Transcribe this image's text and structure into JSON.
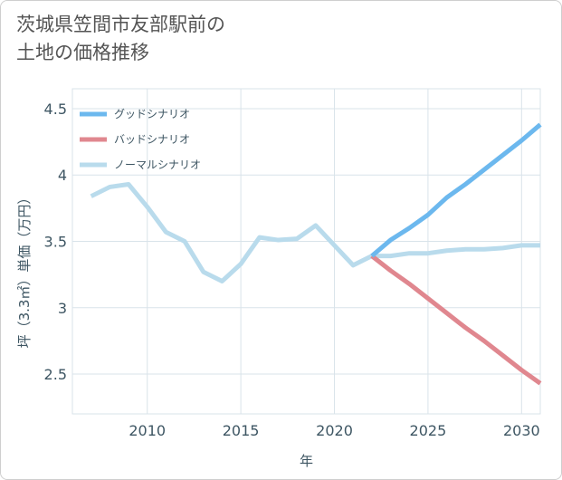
{
  "title": {
    "line1": "茨城県笠間市友部駅前の",
    "line2": "土地の価格推移"
  },
  "chart_data": {
    "type": "line",
    "xlabel": "年",
    "ylabel": "坪（3.3㎡）単価（万円）",
    "xlim": [
      2006,
      2031
    ],
    "ylim": [
      2.2,
      4.65
    ],
    "x_ticks": [
      2010,
      2015,
      2020,
      2025,
      2030
    ],
    "y_ticks": [
      2.5,
      3,
      3.5,
      4,
      4.5
    ],
    "x_tick_labels": [
      "2010",
      "2015",
      "2020",
      "2025",
      "2030"
    ],
    "y_tick_labels": [
      "2.5",
      "3",
      "3.5",
      "4",
      "4.5"
    ],
    "grid": true,
    "legend_position": "top-left",
    "series": [
      {
        "name": "グッドシナリオ",
        "color": "#6cb8ee",
        "x": [
          2022,
          2023,
          2024,
          2025,
          2026,
          2027,
          2028,
          2029,
          2030,
          2031
        ],
        "y": [
          3.39,
          3.51,
          3.6,
          3.7,
          3.83,
          3.93,
          4.04,
          4.15,
          4.26,
          4.38
        ]
      },
      {
        "name": "バッドシナリオ",
        "color": "#e0878f",
        "x": [
          2022,
          2023,
          2024,
          2025,
          2026,
          2027,
          2028,
          2029,
          2030,
          2031
        ],
        "y": [
          3.39,
          3.28,
          3.18,
          3.07,
          2.96,
          2.85,
          2.75,
          2.64,
          2.53,
          2.43
        ]
      },
      {
        "name": "ノーマルシナリオ",
        "color": "#b9dbec",
        "x": [
          2007,
          2008,
          2009,
          2010,
          2011,
          2012,
          2013,
          2014,
          2015,
          2016,
          2017,
          2018,
          2019,
          2020,
          2021,
          2022,
          2023,
          2024,
          2025,
          2026,
          2027,
          2028,
          2029,
          2030,
          2031
        ],
        "y": [
          3.84,
          3.91,
          3.93,
          3.76,
          3.57,
          3.5,
          3.27,
          3.2,
          3.33,
          3.53,
          3.51,
          3.52,
          3.62,
          3.47,
          3.32,
          3.39,
          3.39,
          3.41,
          3.41,
          3.43,
          3.44,
          3.44,
          3.45,
          3.47,
          3.47
        ]
      }
    ]
  }
}
